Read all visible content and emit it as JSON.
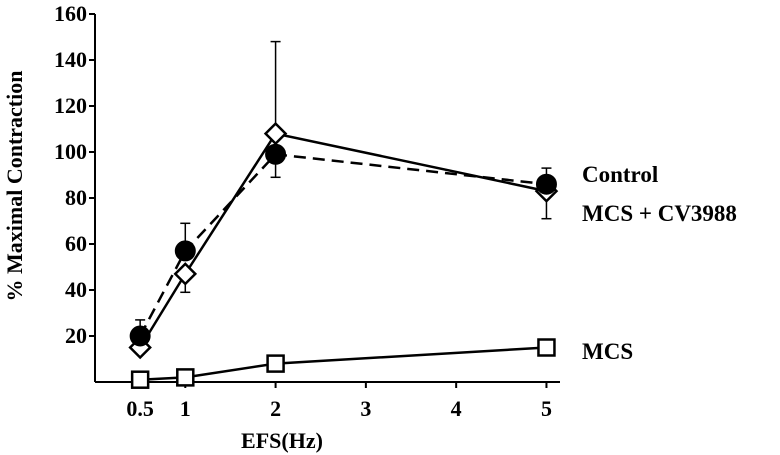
{
  "chart_data": {
    "type": "line",
    "title": "",
    "xlabel": "EFS(Hz)",
    "ylabel": "% Maximal Contraction",
    "xlim": [
      0,
      5.15
    ],
    "ylim": [
      0,
      160
    ],
    "xticks": [
      0.5,
      1,
      2,
      3,
      4,
      5
    ],
    "xtick_labels": [
      "0.5",
      "1",
      "2",
      "3",
      "4",
      "5"
    ],
    "yticks": [
      20,
      40,
      60,
      80,
      100,
      120,
      140,
      160
    ],
    "ytick_labels": [
      "20",
      "40",
      "60",
      "80",
      "100",
      "120",
      "140",
      "160"
    ],
    "grid": false,
    "legend": "direct-labels-right",
    "series": [
      {
        "name": "Control",
        "marker": "filled-circle",
        "line": "dashed",
        "x": [
          0.5,
          1,
          2,
          5
        ],
        "y": [
          20,
          57,
          99,
          86
        ],
        "error_up": [
          7,
          12,
          0,
          7
        ],
        "error_down": [
          0,
          0,
          10,
          0
        ]
      },
      {
        "name": "MCS + CV3988",
        "marker": "open-diamond",
        "line": "solid",
        "x": [
          0.5,
          1,
          2,
          5
        ],
        "y": [
          15,
          47,
          108,
          83
        ],
        "error_up": [
          0,
          0,
          40,
          0
        ],
        "error_down": [
          0,
          8,
          0,
          12
        ]
      },
      {
        "name": "MCS",
        "marker": "open-square",
        "line": "solid",
        "x": [
          0.5,
          1,
          2,
          5
        ],
        "y": [
          1,
          2,
          8,
          15
        ],
        "error_up": [
          0,
          0,
          0,
          0
        ],
        "error_down": [
          0,
          0,
          0,
          0
        ]
      }
    ]
  }
}
